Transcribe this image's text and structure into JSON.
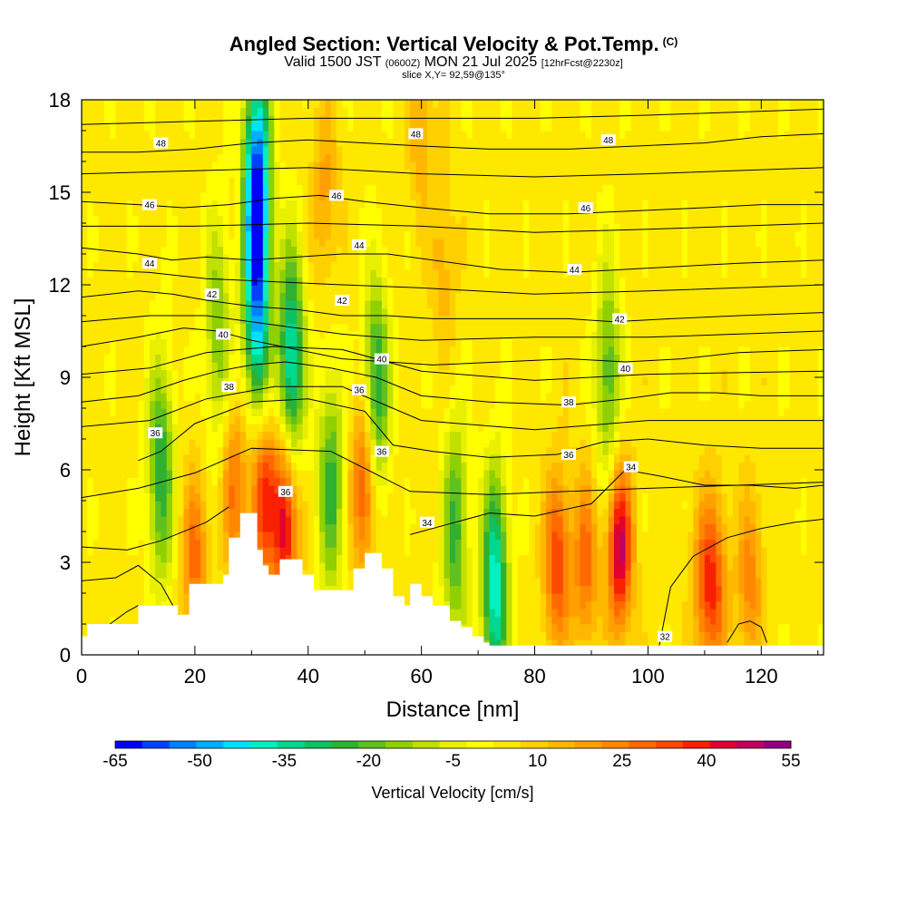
{
  "title": {
    "main": "Angled Section: Vertical Velocity & Pot.Temp.",
    "tag": "(C)",
    "valid_prefix": "Valid 1500 JST",
    "valid_zulu": "(0600Z)",
    "valid_date": "MON 21 Jul 2025",
    "forecast": "[12hrFcst@2230z]",
    "slice": "slice X,Y= 92,59@135°"
  },
  "chart_data": {
    "type": "heatmap",
    "xlabel": "Distance [nm]",
    "ylabel": "Height [Kft MSL]",
    "xlim": [
      0,
      131
    ],
    "ylim": [
      0,
      18
    ],
    "x_ticks": [
      0,
      20,
      40,
      60,
      80,
      100,
      120
    ],
    "y_ticks": [
      0,
      3,
      6,
      9,
      12,
      15,
      18
    ],
    "colorbar": {
      "title": "Vertical Velocity [cm/s]",
      "min": -65,
      "max": 55,
      "step": 5,
      "tick_labels": [
        "-65",
        "-50",
        "-35",
        "-20",
        "-5",
        "10",
        "25",
        "40",
        "55"
      ],
      "colors": [
        "#0000ff",
        "#0040ff",
        "#0080ff",
        "#00b0ff",
        "#00e0ff",
        "#00f0c0",
        "#00d890",
        "#10c060",
        "#30b030",
        "#60c020",
        "#90d000",
        "#c0e000",
        "#e8f000",
        "#ffff00",
        "#ffe800",
        "#ffd000",
        "#ffb800",
        "#ffa000",
        "#ff8800",
        "#ff6a00",
        "#ff4800",
        "#f82000",
        "#e00030",
        "#c00060",
        "#900080"
      ]
    },
    "background_velocity": 7,
    "updraft_cores": [
      {
        "x": 20,
        "z": 3.0,
        "w": 32
      },
      {
        "x": 27,
        "z": 5.5,
        "w": 30
      },
      {
        "x": 32,
        "z": 5.3,
        "w": 42
      },
      {
        "x": 36,
        "z": 4.3,
        "w": 52
      },
      {
        "x": 50,
        "z": 5.5,
        "w": 40
      },
      {
        "x": 64,
        "z": 12.5,
        "w": 18
      },
      {
        "x": 84,
        "z": 3.0,
        "w": 40
      },
      {
        "x": 89,
        "z": 3.0,
        "w": 32
      },
      {
        "x": 95,
        "z": 3.5,
        "w": 52
      },
      {
        "x": 110,
        "z": 2.3,
        "w": 28
      },
      {
        "x": 112,
        "z": 2.3,
        "w": 30
      },
      {
        "x": 118,
        "z": 2.3,
        "w": 28
      },
      {
        "x": 60,
        "z": 17,
        "w": 20
      },
      {
        "x": 43,
        "z": 15,
        "w": 22
      }
    ],
    "downdraft_cores": [
      {
        "x": 31,
        "z": 15.5,
        "w": -55
      },
      {
        "x": 31,
        "z": 11.0,
        "w": -40
      },
      {
        "x": 37,
        "z": 9.5,
        "w": -38
      },
      {
        "x": 73,
        "z": 2.2,
        "w": -40
      },
      {
        "x": 52,
        "z": 8.5,
        "w": -28
      },
      {
        "x": 14,
        "z": 6.0,
        "w": -25
      },
      {
        "x": 93,
        "z": 9.0,
        "w": -20
      },
      {
        "x": 44,
        "z": 5.5,
        "w": -22
      },
      {
        "x": 66,
        "z": 4.0,
        "w": -22
      },
      {
        "x": 24,
        "z": 10.5,
        "w": -15
      }
    ],
    "terrain_profile": {
      "x": [
        0,
        1,
        5,
        10,
        15,
        17,
        19,
        23,
        25,
        26,
        28,
        30,
        31,
        32,
        33,
        35,
        37,
        39,
        41,
        45,
        48,
        50,
        53,
        55,
        57,
        58,
        60,
        62,
        65,
        67,
        69,
        71,
        72,
        131
      ],
      "z": [
        0.6,
        1.0,
        1.0,
        1.6,
        1.6,
        1.3,
        2.3,
        2.3,
        2.6,
        3.8,
        4.6,
        4.6,
        3.4,
        2.9,
        2.6,
        3.1,
        3.1,
        2.6,
        2.1,
        2.1,
        2.8,
        3.3,
        2.8,
        1.9,
        1.6,
        2.3,
        1.9,
        1.6,
        1.1,
        0.9,
        0.6,
        0.4,
        0.3,
        0.3
      ]
    },
    "theta_contours": [
      {
        "level": 32,
        "x": [
          102,
          104,
          108,
          114,
          120,
          126,
          131
        ],
        "z": [
          0.3,
          2.2,
          3.2,
          3.8,
          4.1,
          4.3,
          4.4
        ]
      },
      {
        "level": 34,
        "x": [
          58,
          66,
          72,
          80,
          90,
          96,
          102,
          110,
          118,
          126,
          131
        ],
        "z": [
          3.9,
          4.3,
          4.6,
          4.5,
          4.9,
          6.0,
          5.8,
          5.5,
          5.5,
          5.4,
          5.5
        ]
      },
      {
        "level": 36,
        "x": [
          10,
          14,
          20,
          30,
          40,
          50,
          55,
          62,
          72,
          84,
          92,
          100,
          110,
          120,
          131
        ],
        "z": [
          6.3,
          6.6,
          7.5,
          8.2,
          8.3,
          7.9,
          6.8,
          6.6,
          6.4,
          6.5,
          6.9,
          7.0,
          6.8,
          6.7,
          6.7
        ]
      },
      {
        "level": 38,
        "x": [
          0,
          10,
          18,
          24,
          30,
          36,
          44,
          52,
          60,
          72,
          86,
          96,
          104,
          112,
          120,
          131
        ],
        "z": [
          8.2,
          8.4,
          8.9,
          9.2,
          9.4,
          9.5,
          9.3,
          9.0,
          8.4,
          8.2,
          8.1,
          8.3,
          8.5,
          8.5,
          8.4,
          8.4
        ]
      },
      {
        "level": 40,
        "x": [
          0,
          10,
          18,
          24,
          30,
          38,
          46,
          54,
          62,
          74,
          86,
          96,
          106,
          116,
          131
        ],
        "z": [
          10.0,
          10.3,
          10.6,
          10.5,
          10.2,
          9.9,
          9.6,
          9.5,
          9.4,
          9.5,
          9.6,
          9.5,
          9.6,
          9.8,
          9.9
        ]
      },
      {
        "level": 42,
        "x": [
          0,
          10,
          16,
          22,
          30,
          38,
          46,
          54,
          62,
          74,
          86,
          94,
          104,
          116,
          131
        ],
        "z": [
          11.6,
          11.8,
          11.7,
          11.5,
          11.3,
          11.2,
          11.0,
          11.0,
          10.9,
          10.9,
          10.9,
          10.8,
          10.9,
          11.0,
          11.1
        ]
      },
      {
        "level": 44,
        "x": [
          0,
          10,
          16,
          22,
          30,
          38,
          46,
          54,
          62,
          74,
          86,
          96,
          106,
          116,
          131
        ],
        "z": [
          13.2,
          13.0,
          12.8,
          12.9,
          12.8,
          12.9,
          13.0,
          13.0,
          12.8,
          12.5,
          12.4,
          12.5,
          12.6,
          12.7,
          12.8
        ]
      },
      {
        "level": 46,
        "x": [
          0,
          10,
          18,
          26,
          34,
          42,
          50,
          60,
          72,
          86,
          98,
          110,
          120,
          131
        ],
        "z": [
          14.7,
          14.6,
          14.5,
          14.6,
          14.8,
          14.9,
          14.7,
          14.5,
          14.3,
          14.3,
          14.4,
          14.5,
          14.6,
          14.6
        ]
      },
      {
        "level": 48,
        "x": [
          0,
          10,
          20,
          30,
          40,
          50,
          60,
          72,
          86,
          98,
          110,
          120,
          131
        ],
        "z": [
          16.3,
          16.3,
          16.4,
          16.6,
          16.7,
          16.6,
          16.5,
          16.4,
          16.4,
          16.5,
          16.6,
          16.8,
          16.9
        ]
      }
    ],
    "theta_extra_lines": [
      {
        "x": [
          0,
          20,
          40,
          60,
          80,
          100,
          131
        ],
        "z": [
          17.2,
          17.3,
          17.4,
          17.4,
          17.4,
          17.5,
          17.7
        ]
      },
      {
        "x": [
          0,
          20,
          40,
          60,
          80,
          100,
          131
        ],
        "z": [
          15.6,
          15.7,
          15.8,
          15.6,
          15.5,
          15.6,
          15.8
        ]
      },
      {
        "x": [
          0,
          20,
          40,
          60,
          80,
          100,
          131
        ],
        "z": [
          13.9,
          13.9,
          14.0,
          13.9,
          13.7,
          13.8,
          14.0
        ]
      },
      {
        "x": [
          0,
          12,
          22,
          34,
          46,
          60,
          80,
          100,
          131
        ],
        "z": [
          12.5,
          12.4,
          12.2,
          12.1,
          12.0,
          11.9,
          11.7,
          11.8,
          12.0
        ]
      },
      {
        "x": [
          0,
          12,
          22,
          34,
          46,
          60,
          80,
          100,
          131
        ],
        "z": [
          10.8,
          11.0,
          11.0,
          10.7,
          10.4,
          10.2,
          10.3,
          10.3,
          10.5
        ]
      },
      {
        "x": [
          0,
          12,
          22,
          34,
          46,
          60,
          80,
          100,
          131
        ],
        "z": [
          9.1,
          9.3,
          9.8,
          10.0,
          9.9,
          9.2,
          8.9,
          9.1,
          9.2
        ]
      },
      {
        "x": [
          0,
          12,
          22,
          34,
          46,
          60,
          80,
          100,
          131
        ],
        "z": [
          7.4,
          7.6,
          8.3,
          8.7,
          8.7,
          7.6,
          7.3,
          7.6,
          7.6
        ]
      },
      {
        "x": [
          0,
          10,
          20,
          30,
          44,
          58,
          72,
          86,
          100,
          116,
          131
        ],
        "z": [
          5.1,
          5.4,
          5.9,
          6.7,
          6.6,
          5.3,
          5.2,
          5.3,
          5.4,
          5.5,
          5.6
        ]
      },
      {
        "x": [
          0,
          8,
          14,
          22,
          26
        ],
        "z": [
          3.5,
          3.4,
          3.7,
          4.3,
          4.8
        ]
      },
      {
        "x": [
          0,
          6,
          10,
          14,
          17
        ],
        "z": [
          2.4,
          2.5,
          2.9,
          2.3,
          1.3
        ]
      },
      {
        "x": [
          5,
          8,
          10
        ],
        "z": [
          1.0,
          1.4,
          1.6
        ]
      },
      {
        "x": [
          114,
          116,
          118,
          120,
          121
        ],
        "z": [
          0.4,
          1.0,
          1.1,
          0.9,
          0.4
        ]
      }
    ],
    "contour_labels": [
      {
        "text": "48",
        "x": 14,
        "z": 16.6
      },
      {
        "text": "48",
        "x": 59,
        "z": 16.9
      },
      {
        "text": "48",
        "x": 93,
        "z": 16.7
      },
      {
        "text": "46",
        "x": 12,
        "z": 14.6
      },
      {
        "text": "46",
        "x": 45,
        "z": 14.9
      },
      {
        "text": "46",
        "x": 89,
        "z": 14.5
      },
      {
        "text": "44",
        "x": 12,
        "z": 12.7
      },
      {
        "text": "44",
        "x": 49,
        "z": 13.3
      },
      {
        "text": "44",
        "x": 87,
        "z": 12.5
      },
      {
        "text": "42",
        "x": 23,
        "z": 11.7
      },
      {
        "text": "42",
        "x": 46,
        "z": 11.5
      },
      {
        "text": "42",
        "x": 95,
        "z": 10.9
      },
      {
        "text": "40",
        "x": 25,
        "z": 10.4
      },
      {
        "text": "40",
        "x": 53,
        "z": 9.6
      },
      {
        "text": "40",
        "x": 96,
        "z": 9.3
      },
      {
        "text": "38",
        "x": 26,
        "z": 8.7
      },
      {
        "text": "38",
        "x": 86,
        "z": 8.2
      },
      {
        "text": "36",
        "x": 13,
        "z": 7.2
      },
      {
        "text": "36",
        "x": 49,
        "z": 8.6
      },
      {
        "text": "36",
        "x": 53,
        "z": 6.6
      },
      {
        "text": "36",
        "x": 86,
        "z": 6.5
      },
      {
        "text": "36",
        "x": 36,
        "z": 5.3
      },
      {
        "text": "34",
        "x": 61,
        "z": 4.3
      },
      {
        "text": "34",
        "x": 97,
        "z": 6.1
      },
      {
        "text": "32",
        "x": 103,
        "z": 0.6
      }
    ]
  }
}
